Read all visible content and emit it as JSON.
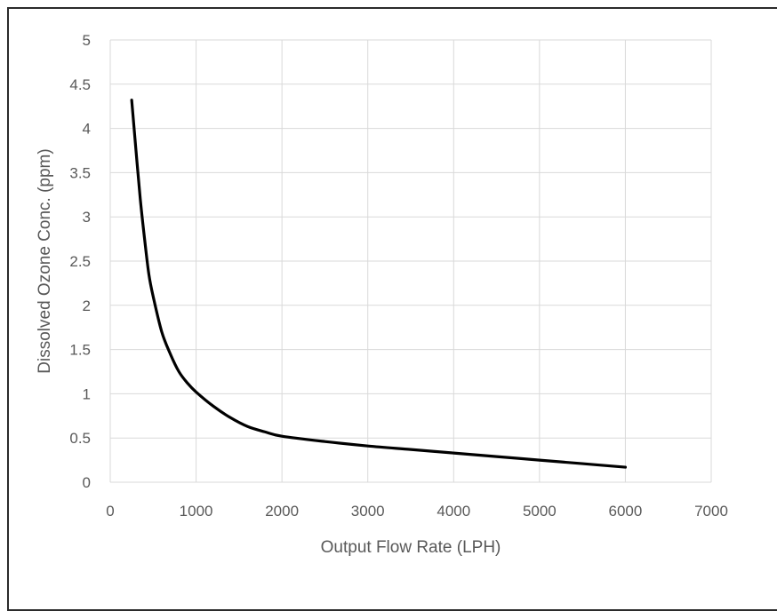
{
  "chart_data": {
    "type": "line",
    "title": "",
    "xlabel": "Output Flow Rate (LPH)",
    "ylabel": "Dissolved Ozone Conc. (ppm)",
    "xlim": [
      0,
      7000
    ],
    "ylim": [
      0,
      5
    ],
    "xticks": [
      0,
      1000,
      2000,
      3000,
      4000,
      5000,
      6000,
      7000
    ],
    "yticks": [
      0,
      0.5,
      1,
      1.5,
      2,
      2.5,
      3,
      3.5,
      4,
      4.5,
      5
    ],
    "xtick_labels": [
      "0",
      "1000",
      "2000",
      "3000",
      "4000",
      "5000",
      "6000",
      "7000"
    ],
    "ytick_labels": [
      "0",
      "0.5",
      "1",
      "1.5",
      "2",
      "2.5",
      "3",
      "3.5",
      "4",
      "4.5",
      "5"
    ],
    "grid": true,
    "legend": "none",
    "series": [
      {
        "color": "#000000",
        "x": [
          250,
          300,
          350,
          400,
          450,
          500,
          600,
          700,
          800,
          900,
          1000,
          1200,
          1400,
          1600,
          1800,
          2000,
          2500,
          3000,
          3500,
          4000,
          4500,
          5000,
          5500,
          6000
        ],
        "y": [
          4.32,
          3.75,
          3.2,
          2.75,
          2.35,
          2.1,
          1.7,
          1.45,
          1.25,
          1.12,
          1.02,
          0.86,
          0.73,
          0.63,
          0.57,
          0.52,
          0.46,
          0.41,
          0.37,
          0.33,
          0.29,
          0.25,
          0.21,
          0.17
        ]
      }
    ]
  }
}
